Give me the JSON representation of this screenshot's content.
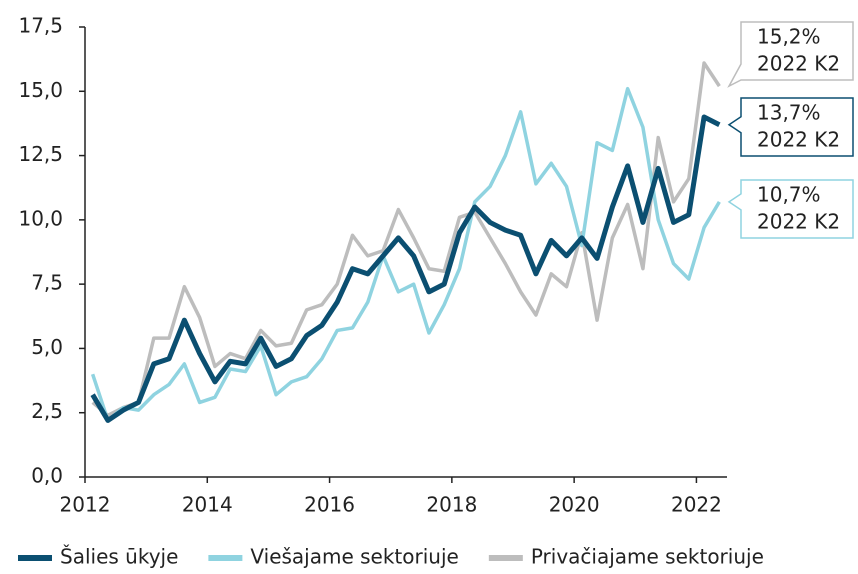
{
  "chart_data": {
    "type": "line",
    "x": [
      2012.125,
      2012.375,
      2012.625,
      2012.875,
      2013.125,
      2013.375,
      2013.625,
      2013.875,
      2014.125,
      2014.375,
      2014.625,
      2014.875,
      2015.125,
      2015.375,
      2015.625,
      2015.875,
      2016.125,
      2016.375,
      2016.625,
      2016.875,
      2017.125,
      2017.375,
      2017.625,
      2017.875,
      2018.125,
      2018.375,
      2018.625,
      2018.875,
      2019.125,
      2019.375,
      2019.625,
      2019.875,
      2020.125,
      2020.375,
      2020.625,
      2020.875,
      2021.125,
      2021.375,
      2021.625,
      2021.875,
      2022.125,
      2022.375
    ],
    "series": [
      {
        "name": "Šalies ūkyje",
        "color": "#0b4f71",
        "values": [
          3.2,
          2.2,
          2.6,
          2.9,
          4.4,
          4.6,
          6.1,
          4.8,
          3.7,
          4.5,
          4.4,
          5.4,
          4.3,
          4.6,
          5.5,
          5.9,
          6.8,
          8.1,
          7.9,
          8.6,
          9.3,
          8.6,
          7.2,
          7.5,
          9.5,
          10.5,
          9.9,
          9.6,
          9.4,
          7.9,
          9.2,
          8.6,
          9.3,
          8.5,
          10.5,
          12.1,
          9.9,
          12.0,
          9.9,
          10.2,
          14.0,
          13.7
        ]
      },
      {
        "name": "Viešajame sektoriuje",
        "color": "#8fd3e0",
        "values": [
          4.0,
          2.2,
          2.7,
          2.6,
          3.2,
          3.6,
          4.4,
          2.9,
          3.1,
          4.2,
          4.1,
          5.1,
          3.2,
          3.7,
          3.9,
          4.6,
          5.7,
          5.8,
          6.8,
          8.6,
          7.2,
          7.5,
          5.6,
          6.7,
          8.1,
          10.7,
          11.3,
          12.5,
          14.2,
          11.4,
          12.2,
          11.3,
          9.0,
          13.0,
          12.7,
          15.1,
          13.6,
          10.0,
          8.3,
          7.7,
          9.7,
          10.7
        ]
      },
      {
        "name": "Privačiajame sektoriuje",
        "color": "#bdbdbd",
        "values": [
          2.9,
          2.4,
          2.7,
          2.9,
          5.4,
          5.4,
          7.4,
          6.2,
          4.3,
          4.8,
          4.6,
          5.7,
          5.1,
          5.2,
          6.5,
          6.7,
          7.5,
          9.4,
          8.6,
          8.8,
          10.4,
          9.3,
          8.1,
          8.0,
          10.1,
          10.3,
          9.3,
          8.3,
          7.2,
          6.3,
          7.9,
          7.4,
          9.5,
          6.1,
          9.3,
          10.6,
          8.1,
          13.2,
          10.7,
          11.6,
          16.1,
          15.2
        ]
      }
    ],
    "xlim": [
      2012,
      2022.5
    ],
    "xticks": [
      2012,
      2014,
      2016,
      2018,
      2020,
      2022
    ],
    "ylim": [
      0,
      17.5
    ],
    "yticks": [
      {
        "value": 0,
        "label": "0,0"
      },
      {
        "value": 2.5,
        "label": "2,5"
      },
      {
        "value": 5,
        "label": "5,0"
      },
      {
        "value": 7.5,
        "label": "7,5"
      },
      {
        "value": 10,
        "label": "10,0"
      },
      {
        "value": 12.5,
        "label": "12,5"
      },
      {
        "value": 15,
        "label": "15,0"
      },
      {
        "value": 17.5,
        "label": "17,5"
      }
    ],
    "annotations": [
      {
        "text": [
          "13,7%",
          "2022 K2"
        ]
      },
      {
        "text": [
          "10,7%",
          "2022 K2"
        ]
      },
      {
        "text": [
          "15,2%",
          "2022 K2"
        ]
      }
    ]
  }
}
